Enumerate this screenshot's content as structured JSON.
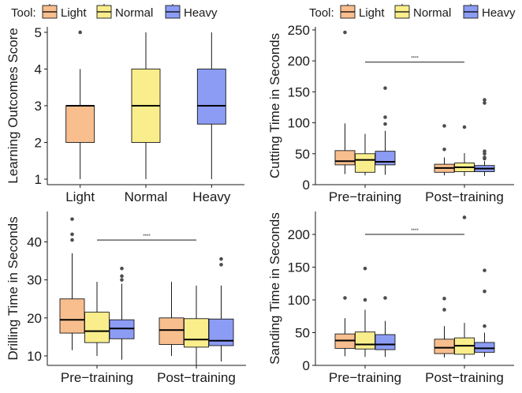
{
  "colors": {
    "Light": "#F9BE8E",
    "Normal": "#FAEE8C",
    "Heavy": "#8C9CF5",
    "outlier": "#4d4d4d"
  },
  "chart_data": [
    {
      "type": "box",
      "legend": {
        "title": "Tool:",
        "entries": [
          "Light",
          "Normal",
          "Heavy"
        ]
      },
      "xlabel": "",
      "ylabel": "Learning Outcomes Score",
      "ylim": [
        0.85,
        5.15
      ],
      "yticks": [
        1,
        2,
        3,
        4,
        5
      ],
      "categories": [
        "Light",
        "Normal",
        "Heavy"
      ],
      "boxes": [
        {
          "category": "Light",
          "series": "Light",
          "min": 1,
          "q1": 2,
          "median": 3,
          "q3": 3,
          "max": 4,
          "outliers": [
            5
          ]
        },
        {
          "category": "Normal",
          "series": "Normal",
          "min": 1,
          "q1": 2,
          "median": 3,
          "q3": 4,
          "max": 5,
          "outliers": []
        },
        {
          "category": "Heavy",
          "series": "Heavy",
          "min": 1,
          "q1": 2.5,
          "median": 3,
          "q3": 4,
          "max": 5,
          "outliers": []
        }
      ],
      "significance": null
    },
    {
      "type": "box",
      "legend": {
        "title": "Tool:",
        "entries": [
          "Light",
          "Normal",
          "Heavy"
        ]
      },
      "xlabel": "",
      "ylabel": "Cutting Time in Seconds",
      "ylim": [
        0,
        255
      ],
      "yticks": [
        0,
        50,
        100,
        150,
        200,
        250
      ],
      "categories": [
        "Pre−training",
        "Post−training"
      ],
      "boxes": [
        {
          "category": "Pre−training",
          "series": "Light",
          "min": 17,
          "q1": 32,
          "median": 38,
          "q3": 55,
          "max": 99,
          "outliers": [
            246
          ]
        },
        {
          "category": "Pre−training",
          "series": "Normal",
          "min": 15,
          "q1": 20,
          "median": 40,
          "q3": 50,
          "max": 82,
          "outliers": []
        },
        {
          "category": "Pre−training",
          "series": "Heavy",
          "min": 16,
          "q1": 32,
          "median": 37,
          "q3": 54,
          "max": 87,
          "outliers": [
            156,
            109,
            98
          ]
        },
        {
          "category": "Post−training",
          "series": "Light",
          "min": 15,
          "q1": 20,
          "median": 27,
          "q3": 33,
          "max": 44,
          "outliers": [
            95,
            57
          ]
        },
        {
          "category": "Post−training",
          "series": "Normal",
          "min": 14,
          "q1": 21,
          "median": 28,
          "q3": 35,
          "max": 51,
          "outliers": [
            93
          ]
        },
        {
          "category": "Post−training",
          "series": "Heavy",
          "min": 14,
          "q1": 21,
          "median": 26,
          "q3": 31,
          "max": 38,
          "outliers": [
            137,
            132,
            54,
            50,
            44,
            42
          ]
        }
      ],
      "significance": {
        "label": "****",
        "y": 198,
        "from": "Pre−training",
        "to": "Post−training"
      }
    },
    {
      "type": "box",
      "legend": null,
      "xlabel": "",
      "ylabel": "Drilling Time in Seconds",
      "ylim": [
        7.5,
        48
      ],
      "yticks": [
        10,
        20,
        30,
        40
      ],
      "categories": [
        "Pre−training",
        "Post−training"
      ],
      "boxes": [
        {
          "category": "Pre−training",
          "series": "Light",
          "min": 11.5,
          "q1": 16,
          "median": 19.5,
          "q3": 25,
          "max": 37,
          "outliers": [
            46,
            42,
            40.5
          ]
        },
        {
          "category": "Pre−training",
          "series": "Normal",
          "min": 10,
          "q1": 13.5,
          "median": 16.5,
          "q3": 21.5,
          "max": 29.5,
          "outliers": []
        },
        {
          "category": "Pre−training",
          "series": "Heavy",
          "min": 9,
          "q1": 14.5,
          "median": 17.2,
          "q3": 19.5,
          "max": 29,
          "outliers": [
            33,
            31,
            30
          ]
        },
        {
          "category": "Post−training",
          "series": "Light",
          "min": 10,
          "q1": 13,
          "median": 16.8,
          "q3": 20,
          "max": 29.5,
          "outliers": []
        },
        {
          "category": "Post−training",
          "series": "Normal",
          "min": 7.5,
          "q1": 12.3,
          "median": 14.3,
          "q3": 19.8,
          "max": 28.5,
          "outliers": []
        },
        {
          "category": "Post−training",
          "series": "Heavy",
          "min": 8.5,
          "q1": 12.7,
          "median": 14,
          "q3": 19.7,
          "max": 28.5,
          "outliers": [
            35.5,
            34
          ]
        }
      ],
      "significance": {
        "label": "****",
        "y": 40.5,
        "from": "Pre−training",
        "to": "Post−training"
      }
    },
    {
      "type": "box",
      "legend": null,
      "xlabel": "",
      "ylabel": "Sanding Time in Seconds",
      "ylim": [
        0,
        235
      ],
      "yticks": [
        0,
        50,
        100,
        150,
        200
      ],
      "categories": [
        "Pre−training",
        "Post−training"
      ],
      "boxes": [
        {
          "category": "Pre−training",
          "series": "Light",
          "min": 14,
          "q1": 26,
          "median": 38,
          "q3": 48,
          "max": 72,
          "outliers": [
            103
          ]
        },
        {
          "category": "Pre−training",
          "series": "Normal",
          "min": 13,
          "q1": 25,
          "median": 32,
          "q3": 51,
          "max": 85,
          "outliers": [
            148,
            100
          ]
        },
        {
          "category": "Pre−training",
          "series": "Heavy",
          "min": 13,
          "q1": 24,
          "median": 32,
          "q3": 47,
          "max": 68,
          "outliers": [
            103
          ]
        },
        {
          "category": "Post−training",
          "series": "Light",
          "min": 12,
          "q1": 18,
          "median": 27,
          "q3": 40,
          "max": 60,
          "outliers": [
            102,
            85
          ]
        },
        {
          "category": "Post−training",
          "series": "Normal",
          "min": 10,
          "q1": 17,
          "median": 30,
          "q3": 42,
          "max": 65,
          "outliers": [
            226
          ]
        },
        {
          "category": "Post−training",
          "series": "Heavy",
          "min": 13,
          "q1": 20,
          "median": 26,
          "q3": 35,
          "max": 50,
          "outliers": [
            145,
            113,
            60
          ]
        }
      ],
      "significance": {
        "label": "****",
        "y": 200,
        "from": "Pre−training",
        "to": "Post−training"
      }
    }
  ]
}
